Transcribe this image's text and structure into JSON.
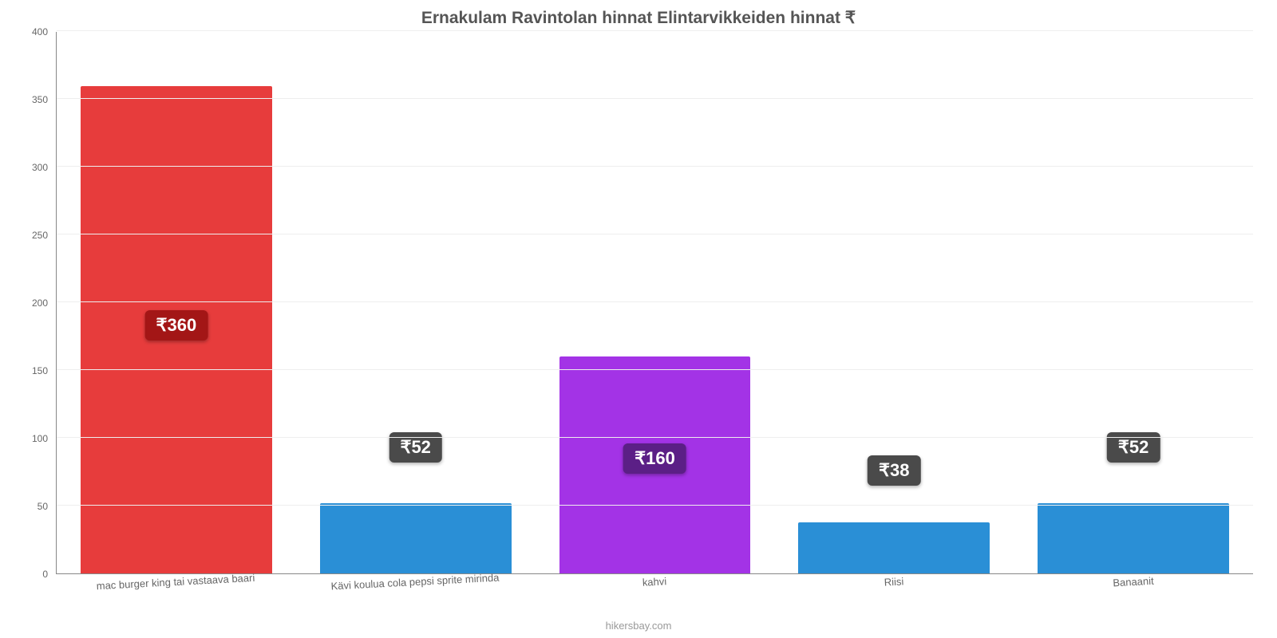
{
  "chart": {
    "type": "bar",
    "title": "Ernakulam Ravintolan hinnat Elintarvikkeiden hinnat ₹",
    "title_fontsize": 21,
    "title_color": "#555555",
    "attribution": "hikersbay.com",
    "background_color": "#ffffff",
    "grid_color": "#eeeeee",
    "axis_color": "#888888",
    "label_color": "#666666",
    "yaxis": {
      "min": 0,
      "max": 400,
      "ticks": [
        0,
        50,
        100,
        150,
        200,
        250,
        300,
        350,
        400
      ]
    },
    "badge_fontsize": 22,
    "xlabel_fontsize": 13,
    "ytick_fontsize": 12,
    "bar_width_pct": 80,
    "bars": [
      {
        "category": "mac burger king tai vastaava baari",
        "value": 360,
        "value_label": "₹360",
        "color": "#e73c3c",
        "badge_bg": "#a31616",
        "badge_top_pct": 46
      },
      {
        "category": "Kävi koulua cola pepsi sprite mirinda",
        "value": 52,
        "value_label": "₹52",
        "color": "#2a8fd6",
        "badge_bg": "#4a4a4a",
        "badge_top_pct": -100
      },
      {
        "category": "kahvi",
        "value": 160,
        "value_label": "₹160",
        "color": "#a333e6",
        "badge_bg": "#5b1f86",
        "badge_top_pct": 40
      },
      {
        "category": "Riisi",
        "value": 38,
        "value_label": "₹38",
        "color": "#2a8fd6",
        "badge_bg": "#4a4a4a",
        "badge_top_pct": -130
      },
      {
        "category": "Banaanit",
        "value": 52,
        "value_label": "₹52",
        "color": "#2a8fd6",
        "badge_bg": "#4a4a4a",
        "badge_top_pct": -100
      }
    ]
  }
}
